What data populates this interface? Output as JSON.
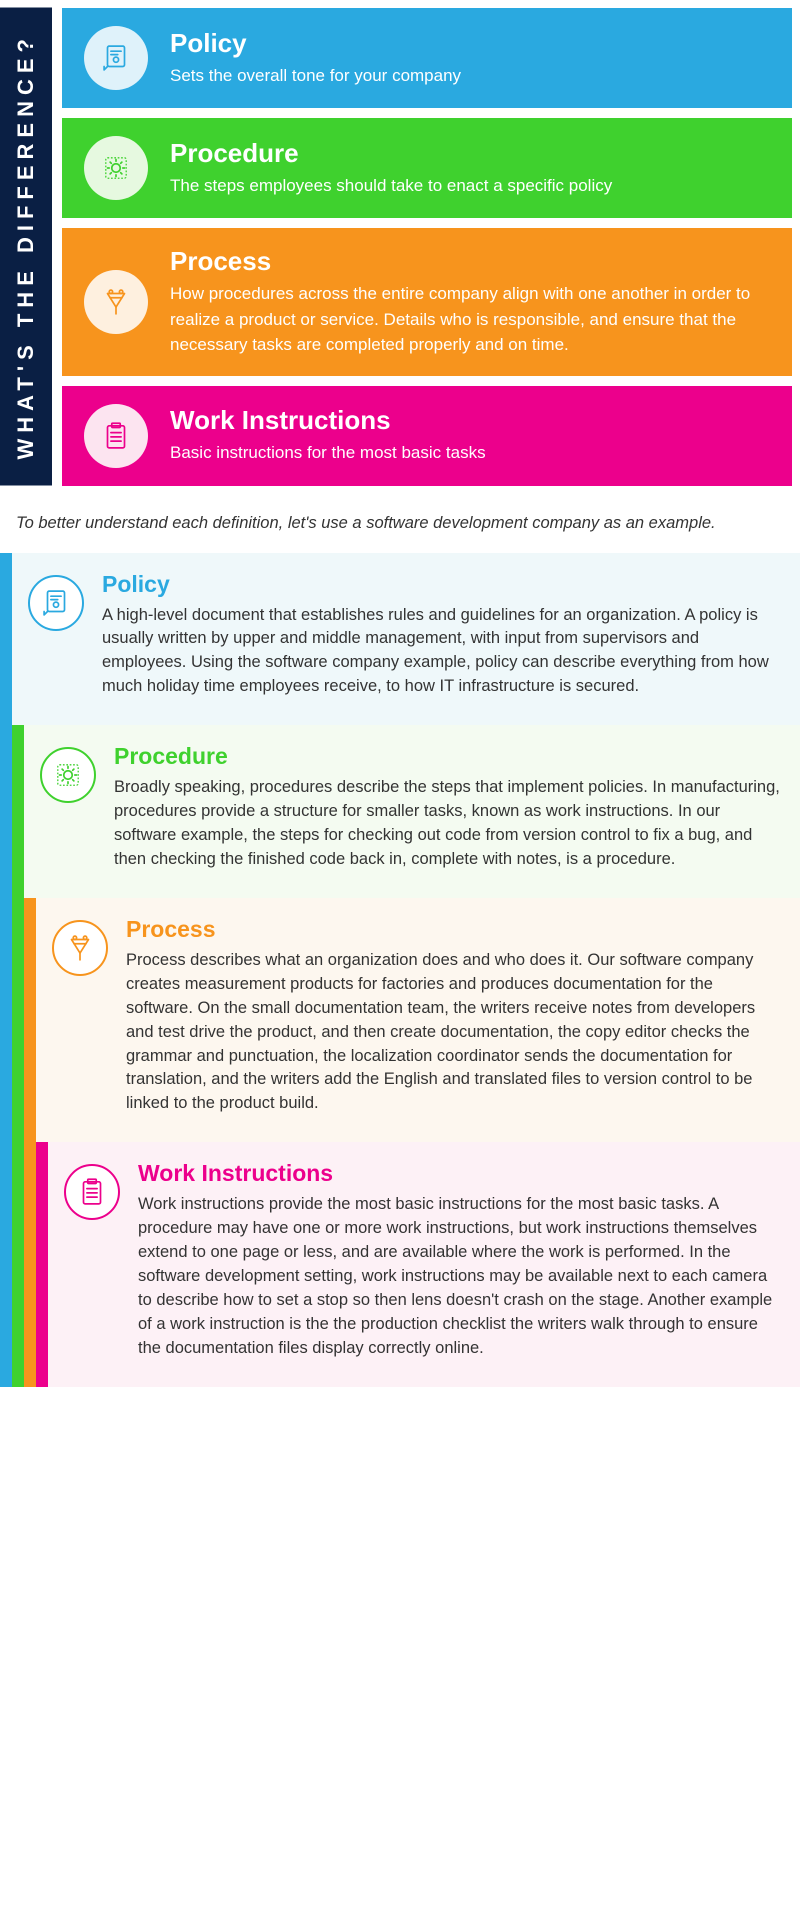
{
  "side_title": "WHAT'S THE DIFFERENCE?",
  "colors": {
    "navy": "#0a1f44",
    "blue": "#2aa9e0",
    "green": "#3fd12e",
    "orange": "#f7941d",
    "magenta": "#ec008c",
    "blue_bg": "#eff8fa",
    "green_bg": "#f4fbf1",
    "orange_bg": "#fdf7ef",
    "magenta_bg": "#fdf1f6",
    "icon_bg_light": "#dff2fa",
    "icon_bg_green": "#e6f9e0",
    "icon_bg_orange": "#fef0df",
    "icon_bg_magenta": "#fce4f0",
    "text": "#333333",
    "white": "#ffffff"
  },
  "cards": [
    {
      "title": "Policy",
      "desc": "Sets the overall tone for your company",
      "bg": "#2aa9e0",
      "icon_bg": "#dff2fa",
      "icon_color": "#2aa9e0"
    },
    {
      "title": "Procedure",
      "desc": "The steps employees should take to enact a specific policy",
      "bg": "#3fd12e",
      "icon_bg": "#e6f9e0",
      "icon_color": "#3fd12e"
    },
    {
      "title": "Process",
      "desc": "How procedures across the entire company align with one another in order to realize a product or service. Details who  is responsible, and ensure that the necessary tasks are completed properly and on time.",
      "bg": "#f7941d",
      "icon_bg": "#fef0df",
      "icon_color": "#f7941d"
    },
    {
      "title": "Work Instructions",
      "desc": "Basic instructions for the most basic tasks",
      "bg": "#ec008c",
      "icon_bg": "#fce4f0",
      "icon_color": "#ec008c"
    }
  ],
  "transition": "To better understand each definition, let's use a software development company as an example.",
  "details": [
    {
      "title": "Policy",
      "title_color": "#2aa9e0",
      "body": "A high-level document that establishes rules and guidelines for an organization. A policy is usually written by upper and middle management, with input from supervisors and employees. Using the software company example, policy can describe everything from how much holiday time employees receive, to how IT infrastructure is secured.",
      "bg": "#eff8fa",
      "icon_border": "#2aa9e0",
      "bars": [
        "#2aa9e0"
      ]
    },
    {
      "title": "Procedure",
      "title_color": "#3fd12e",
      "body": "Broadly speaking, procedures describe the steps that implement policies. In manufacturing, procedures provide a structure for smaller tasks, known as work instructions. In our software example, the steps for checking out code from version control to fix a bug, and then checking the finished code back in, complete with notes, is a procedure.",
      "bg": "#f4fbf1",
      "icon_border": "#3fd12e",
      "bars": [
        "#2aa9e0",
        "#3fd12e"
      ]
    },
    {
      "title": "Process",
      "title_color": "#f7941d",
      "body": "Process describes what an organization does and who does it. Our software company creates measurement products for factories and produces documentation for the software. On the small documentation team, the writers receive notes from developers and test drive the product, and then create documentation, the copy editor checks the grammar and punctuation, the localization coordinator sends the documentation for translation, and the writers add the English and translated files to version control to be linked to the product build.",
      "bg": "#fdf7ef",
      "icon_border": "#f7941d",
      "bars": [
        "#2aa9e0",
        "#3fd12e",
        "#f7941d"
      ]
    },
    {
      "title": "Work Instructions",
      "title_color": "#ec008c",
      "body": "Work instructions provide the most basic instructions for the most basic tasks. A procedure may have one or more work instructions, but work instructions themselves extend to one page or less, and are available where the work is performed. In the software development setting, work instructions may be available next to each camera to describe how to set a stop so then lens doesn't crash on the stage. Another example of a work instruction is the the production checklist the writers walk through to ensure the documentation files display correctly online.",
      "bg": "#fdf1f6",
      "icon_border": "#ec008c",
      "bars": [
        "#2aa9e0",
        "#3fd12e",
        "#f7941d",
        "#ec008c"
      ]
    }
  ]
}
